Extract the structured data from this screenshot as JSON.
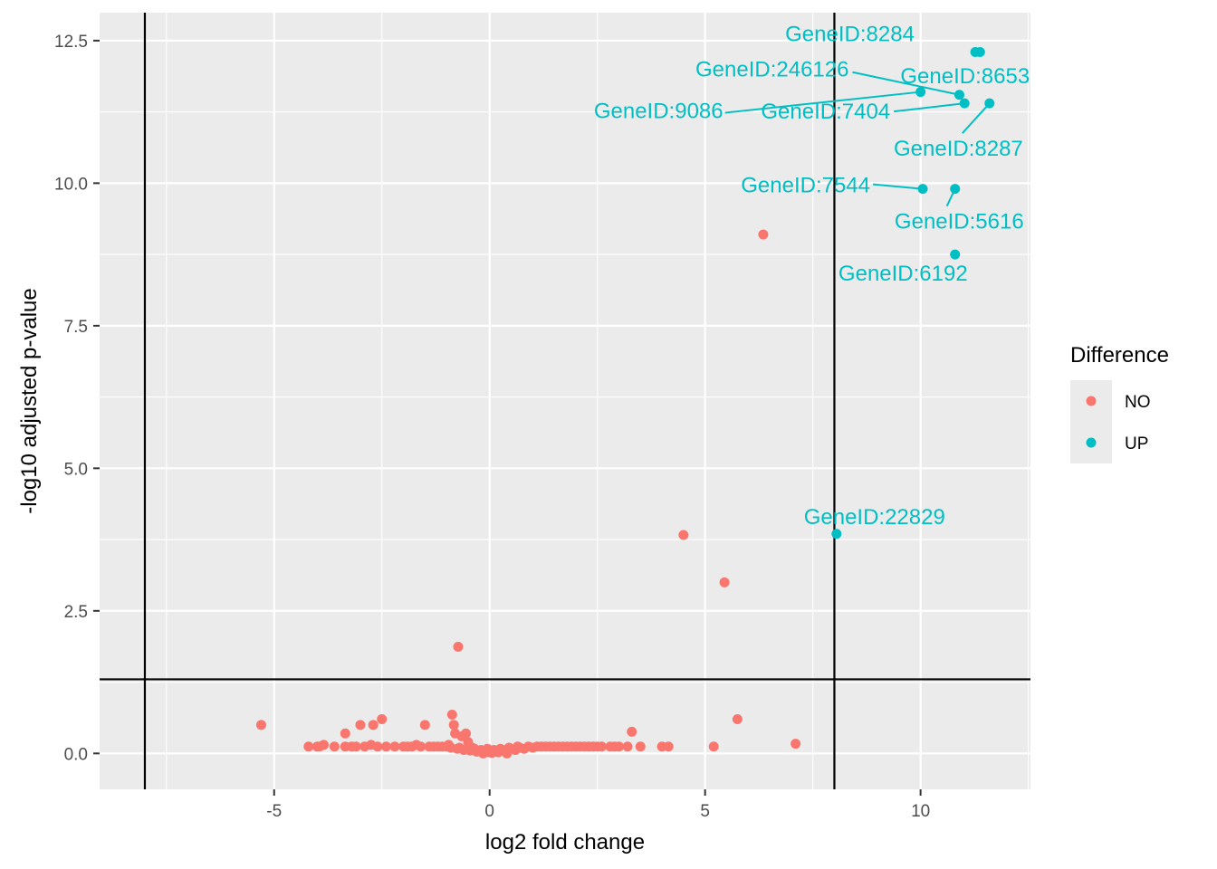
{
  "chart_data": {
    "type": "scatter",
    "title": "",
    "xlabel": "log2 fold change",
    "ylabel": "-log10 adjusted p-value",
    "xlim": [
      -9.05,
      12.55
    ],
    "ylim": [
      -0.63,
      12.99
    ],
    "x_ticks": [
      -5,
      0,
      5,
      10
    ],
    "x_tick_labels": [
      "-5",
      "0",
      "5",
      "10"
    ],
    "y_ticks": [
      0.0,
      2.5,
      5.0,
      7.5,
      10.0,
      12.5
    ],
    "y_tick_labels": [
      "0.0",
      "2.5",
      "5.0",
      "7.5",
      "10.0",
      "12.5"
    ],
    "grid": true,
    "thresholds": {
      "vlines": [
        -8,
        8
      ],
      "hline": 1.3
    },
    "colors": {
      "NO": "#F8766D",
      "UP": "#00BFC4"
    },
    "legend": {
      "title": "Difference",
      "placement": "right",
      "entries": [
        "NO",
        "UP"
      ]
    },
    "series": [
      {
        "name": "NO",
        "points": [
          [
            6.35,
            9.1
          ],
          [
            4.5,
            3.83
          ],
          [
            5.45,
            3.0
          ],
          [
            -0.73,
            1.87
          ],
          [
            -5.3,
            0.5
          ],
          [
            -4.2,
            0.12
          ],
          [
            -3.95,
            0.12
          ],
          [
            -3.85,
            0.15
          ],
          [
            -3.35,
            0.35
          ],
          [
            -3.35,
            0.12
          ],
          [
            -3.0,
            0.5
          ],
          [
            -3.1,
            0.12
          ],
          [
            -2.7,
            0.5
          ],
          [
            -2.5,
            0.6
          ],
          [
            -2.75,
            0.15
          ],
          [
            -2.2,
            0.12
          ],
          [
            -1.9,
            0.12
          ],
          [
            -1.5,
            0.5
          ],
          [
            -1.7,
            0.15
          ],
          [
            -1.3,
            0.12
          ],
          [
            -0.87,
            0.68
          ],
          [
            -0.83,
            0.5
          ],
          [
            -0.8,
            0.35
          ],
          [
            -0.55,
            0.35
          ],
          [
            -0.5,
            0.2
          ],
          [
            -1.1,
            0.12
          ],
          [
            -0.95,
            0.15
          ],
          [
            -0.7,
            0.1
          ],
          [
            -0.35,
            0.08
          ],
          [
            -0.2,
            0.06
          ],
          [
            -0.1,
            0.04
          ],
          [
            0.0,
            0.02
          ],
          [
            0.15,
            0.04
          ],
          [
            0.3,
            0.06
          ],
          [
            0.5,
            0.08
          ],
          [
            0.7,
            0.1
          ],
          [
            0.9,
            0.12
          ],
          [
            1.2,
            0.12
          ],
          [
            1.5,
            0.12
          ],
          [
            1.8,
            0.12
          ],
          [
            2.1,
            0.12
          ],
          [
            2.4,
            0.12
          ],
          [
            2.8,
            0.12
          ],
          [
            3.0,
            0.12
          ],
          [
            3.2,
            0.12
          ],
          [
            3.3,
            0.38
          ],
          [
            3.5,
            0.12
          ],
          [
            4.0,
            0.12
          ],
          [
            4.15,
            0.12
          ],
          [
            5.2,
            0.12
          ],
          [
            5.75,
            0.6
          ],
          [
            7.1,
            0.17
          ],
          [
            -4.0,
            0.12
          ],
          [
            -3.6,
            0.12
          ],
          [
            -3.2,
            0.12
          ],
          [
            -2.9,
            0.12
          ],
          [
            -2.6,
            0.12
          ],
          [
            -2.4,
            0.12
          ],
          [
            -2.0,
            0.12
          ],
          [
            -1.8,
            0.12
          ],
          [
            -1.6,
            0.12
          ],
          [
            -1.4,
            0.12
          ],
          [
            -1.2,
            0.12
          ],
          [
            -1.0,
            0.12
          ],
          [
            -0.6,
            0.06
          ],
          [
            -0.45,
            0.05
          ],
          [
            -0.3,
            0.03
          ],
          [
            0.05,
            0.01
          ],
          [
            0.2,
            0.02
          ],
          [
            0.35,
            0.04
          ],
          [
            0.6,
            0.06
          ],
          [
            0.8,
            0.08
          ],
          [
            1.0,
            0.1
          ],
          [
            1.1,
            0.12
          ],
          [
            1.3,
            0.12
          ],
          [
            1.4,
            0.12
          ],
          [
            1.6,
            0.12
          ],
          [
            1.7,
            0.12
          ],
          [
            1.9,
            0.12
          ],
          [
            2.0,
            0.12
          ],
          [
            2.2,
            0.12
          ],
          [
            2.3,
            0.12
          ],
          [
            2.5,
            0.12
          ],
          [
            2.6,
            0.12
          ],
          [
            2.9,
            0.12
          ],
          [
            -0.9,
            0.1
          ],
          [
            -0.75,
            0.08
          ],
          [
            -0.65,
            0.3
          ],
          [
            -0.4,
            0.1
          ],
          [
            0.25,
            0.08
          ],
          [
            0.45,
            0.1
          ],
          [
            0.65,
            0.12
          ],
          [
            0.4,
            0.0
          ],
          [
            -0.15,
            0.0
          ],
          [
            0.1,
            0.06
          ],
          [
            -0.05,
            0.08
          ]
        ]
      },
      {
        "name": "UP",
        "points": [
          [
            11.27,
            12.3
          ],
          [
            11.38,
            12.3
          ],
          [
            10.0,
            11.6
          ],
          [
            10.9,
            11.55
          ],
          [
            11.02,
            11.4
          ],
          [
            11.6,
            11.4
          ],
          [
            10.05,
            9.9
          ],
          [
            10.8,
            9.9
          ],
          [
            10.8,
            8.75
          ],
          [
            8.05,
            3.85
          ]
        ]
      }
    ],
    "annotations": [
      {
        "label": "GeneID:8284",
        "x": 11.33,
        "y": 12.3
      },
      {
        "label": "GeneID:246126",
        "x": 10.9,
        "y": 11.55
      },
      {
        "label": "GeneID:8653",
        "x": 11.02,
        "y": 11.4
      },
      {
        "label": "GeneID:9086",
        "x": 10.0,
        "y": 11.6
      },
      {
        "label": "GeneID:7404",
        "x": 11.02,
        "y": 11.4
      },
      {
        "label": "GeneID:8287",
        "x": 11.6,
        "y": 11.4
      },
      {
        "label": "GeneID:7544",
        "x": 10.05,
        "y": 9.9
      },
      {
        "label": "GeneID:5616",
        "x": 10.8,
        "y": 9.9
      },
      {
        "label": "GeneID:6192",
        "x": 10.8,
        "y": 8.75
      },
      {
        "label": "GeneID:22829",
        "x": 8.05,
        "y": 3.85
      }
    ]
  }
}
